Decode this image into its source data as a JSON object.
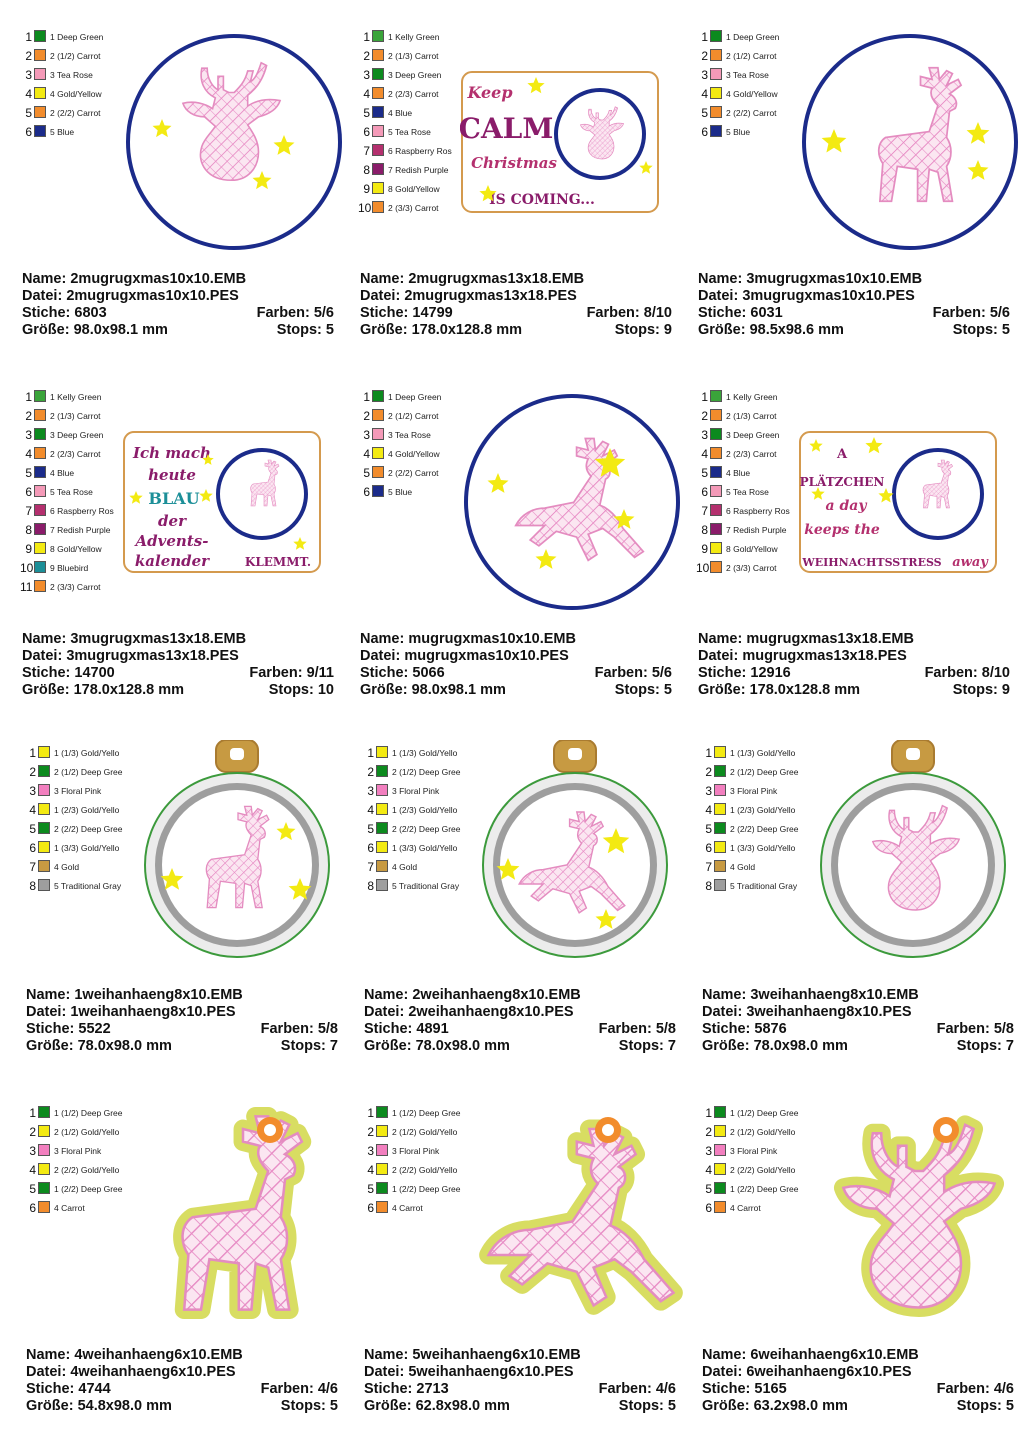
{
  "labels": {
    "name": "Name:",
    "file": "Datei:",
    "stitches": "Stiche:",
    "colors": "Farben:",
    "size": "Größe:",
    "stops": "Stops:"
  },
  "colors": {
    "deep_green": "#0c8a1e",
    "kelly_green": "#3aa43a",
    "carrot": "#f28c2c",
    "tea_rose": "#f49ab8",
    "gold_yellow": "#f3ea12",
    "blue": "#1b2b8a",
    "raspberry": "#b4306e",
    "redish_purple": "#8a1c6a",
    "bluebird": "#1c8f98",
    "floral_pink": "#f27fbf",
    "gold": "#c79a42",
    "gray": "#9e9e9e"
  },
  "cards": [
    {
      "name": "2mugrugxmas10x10.EMB",
      "file": "2mugrugxmas10x10.PES",
      "stitches": "6803",
      "colors": "5/6",
      "size": "98.0x98.1 mm",
      "stops": "5",
      "image": "reindeer-head-circle",
      "legend": [
        {
          "n": "1",
          "c": "#0c8a1e",
          "t": "1 Deep Green"
        },
        {
          "n": "2",
          "c": "#f28c2c",
          "t": "2 (1/2) Carrot"
        },
        {
          "n": "3",
          "c": "#f49ab8",
          "t": "3 Tea Rose"
        },
        {
          "n": "4",
          "c": "#f3ea12",
          "t": "4 Gold/Yellow"
        },
        {
          "n": "5",
          "c": "#f28c2c",
          "t": "2 (2/2) Carrot"
        },
        {
          "n": "6",
          "c": "#1b2b8a",
          "t": "5 Blue"
        }
      ]
    },
    {
      "name": "2mugrugxmas13x18.EMB",
      "file": "2mugrugxmas13x18.PES",
      "stitches": "14799",
      "colors": "8/10",
      "size": "178.0x128.8 mm",
      "stops": "9",
      "image": "keep-calm-rug",
      "text": {
        "l1": "Keep",
        "l2": "CALM",
        "l3": "Christmas",
        "l4": "IS COMING..."
      },
      "legend": [
        {
          "n": "1",
          "c": "#3aa43a",
          "t": "1 Kelly Green"
        },
        {
          "n": "2",
          "c": "#f28c2c",
          "t": "2 (1/3) Carrot"
        },
        {
          "n": "3",
          "c": "#0c8a1e",
          "t": "3 Deep Green"
        },
        {
          "n": "4",
          "c": "#f28c2c",
          "t": "2 (2/3) Carrot"
        },
        {
          "n": "5",
          "c": "#1b2b8a",
          "t": "4 Blue"
        },
        {
          "n": "6",
          "c": "#f49ab8",
          "t": "5 Tea Rose"
        },
        {
          "n": "7",
          "c": "#b4306e",
          "t": "6 Raspberry Ros"
        },
        {
          "n": "8",
          "c": "#8a1c6a",
          "t": "7 Redish Purple"
        },
        {
          "n": "9",
          "c": "#f3ea12",
          "t": "8 Gold/Yellow"
        },
        {
          "n": "10",
          "c": "#f28c2c",
          "t": "2 (3/3) Carrot"
        }
      ]
    },
    {
      "name": "3mugrugxmas10x10.EMB",
      "file": "3mugrugxmas10x10.PES",
      "stitches": "6031",
      "colors": "5/6",
      "size": "98.5x98.6 mm",
      "stops": "5",
      "image": "reindeer-standing-circle",
      "legend": [
        {
          "n": "1",
          "c": "#0c8a1e",
          "t": "1 Deep Green"
        },
        {
          "n": "2",
          "c": "#f28c2c",
          "t": "2 (1/2) Carrot"
        },
        {
          "n": "3",
          "c": "#f49ab8",
          "t": "3 Tea Rose"
        },
        {
          "n": "4",
          "c": "#f3ea12",
          "t": "4 Gold/Yellow"
        },
        {
          "n": "5",
          "c": "#f28c2c",
          "t": "2 (2/2) Carrot"
        },
        {
          "n": "6",
          "c": "#1b2b8a",
          "t": "5 Blue"
        }
      ]
    },
    {
      "name": "3mugrugxmas13x18.EMB",
      "file": "3mugrugxmas13x18.PES",
      "stitches": "14700",
      "colors": "9/11",
      "size": "178.0x128.8 mm",
      "stops": "10",
      "image": "blau-rug",
      "text": {
        "l1": "Ich mach",
        "l2": "heute",
        "l3": "BLAU",
        "l4": "der",
        "l5": "Advents-",
        "l6": "kalender",
        "l7": "KLEMMT."
      },
      "legend": [
        {
          "n": "1",
          "c": "#3aa43a",
          "t": "1 Kelly Green"
        },
        {
          "n": "2",
          "c": "#f28c2c",
          "t": "2 (1/3) Carrot"
        },
        {
          "n": "3",
          "c": "#0c8a1e",
          "t": "3 Deep Green"
        },
        {
          "n": "4",
          "c": "#f28c2c",
          "t": "2 (2/3) Carrot"
        },
        {
          "n": "5",
          "c": "#1b2b8a",
          "t": "4 Blue"
        },
        {
          "n": "6",
          "c": "#f49ab8",
          "t": "5 Tea Rose"
        },
        {
          "n": "7",
          "c": "#b4306e",
          "t": "6 Raspberry Ros"
        },
        {
          "n": "8",
          "c": "#8a1c6a",
          "t": "7 Redish Purple"
        },
        {
          "n": "9",
          "c": "#f3ea12",
          "t": "8 Gold/Yellow"
        },
        {
          "n": "10",
          "c": "#1c8f98",
          "t": "9 Bluebird"
        },
        {
          "n": "11",
          "c": "#f28c2c",
          "t": "2 (3/3) Carrot"
        }
      ]
    },
    {
      "name": "mugrugxmas10x10.EMB",
      "file": "mugrugxmas10x10.PES",
      "stitches": "5066",
      "colors": "5/6",
      "size": "98.0x98.1 mm",
      "stops": "5",
      "image": "reindeer-leaping-circle",
      "legend": [
        {
          "n": "1",
          "c": "#0c8a1e",
          "t": "1 Deep Green"
        },
        {
          "n": "2",
          "c": "#f28c2c",
          "t": "2 (1/2) Carrot"
        },
        {
          "n": "3",
          "c": "#f49ab8",
          "t": "3 Tea Rose"
        },
        {
          "n": "4",
          "c": "#f3ea12",
          "t": "4 Gold/Yellow"
        },
        {
          "n": "5",
          "c": "#f28c2c",
          "t": "2 (2/2) Carrot"
        },
        {
          "n": "6",
          "c": "#1b2b8a",
          "t": "5 Blue"
        }
      ]
    },
    {
      "name": "mugrugxmas13x18.EMB",
      "file": "mugrugxmas13x18.PES",
      "stitches": "12916",
      "colors": "8/10",
      "size": "178.0x128.8 mm",
      "stops": "9",
      "image": "plaetzchen-rug",
      "text": {
        "l1": "A",
        "l2": "PLÄTZCHEN",
        "l3": "a day",
        "l4": "keeps the",
        "l5": "WEIHNACHTSSTRESS",
        "l6": "away"
      },
      "legend": [
        {
          "n": "1",
          "c": "#3aa43a",
          "t": "1 Kelly Green"
        },
        {
          "n": "2",
          "c": "#f28c2c",
          "t": "2 (1/3) Carrot"
        },
        {
          "n": "3",
          "c": "#0c8a1e",
          "t": "3 Deep Green"
        },
        {
          "n": "4",
          "c": "#f28c2c",
          "t": "2 (2/3) Carrot"
        },
        {
          "n": "5",
          "c": "#1b2b8a",
          "t": "4 Blue"
        },
        {
          "n": "6",
          "c": "#f49ab8",
          "t": "5 Tea Rose"
        },
        {
          "n": "7",
          "c": "#b4306e",
          "t": "6 Raspberry Ros"
        },
        {
          "n": "8",
          "c": "#8a1c6a",
          "t": "7 Redish Purple"
        },
        {
          "n": "9",
          "c": "#f3ea12",
          "t": "8 Gold/Yellow"
        },
        {
          "n": "10",
          "c": "#f28c2c",
          "t": "2 (3/3) Carrot"
        }
      ]
    },
    {
      "name": "1weihanhaeng8x10.EMB",
      "file": "1weihanhaeng8x10.PES",
      "stitches": "5522",
      "colors": "5/8",
      "size": "78.0x98.0 mm",
      "stops": "7",
      "image": "ornament-reindeer-standing",
      "legend": [
        {
          "n": "1",
          "c": "#f3ea12",
          "t": "1 (1/3) Gold/Yello"
        },
        {
          "n": "2",
          "c": "#0c8a1e",
          "t": "2 (1/2) Deep Gree"
        },
        {
          "n": "3",
          "c": "#f27fbf",
          "t": "3 Floral Pink"
        },
        {
          "n": "4",
          "c": "#f3ea12",
          "t": "1 (2/3) Gold/Yello"
        },
        {
          "n": "5",
          "c": "#0c8a1e",
          "t": "2 (2/2) Deep Gree"
        },
        {
          "n": "6",
          "c": "#f3ea12",
          "t": "1 (3/3) Gold/Yello"
        },
        {
          "n": "7",
          "c": "#c79a42",
          "t": "4 Gold"
        },
        {
          "n": "8",
          "c": "#9e9e9e",
          "t": "5 Traditional Gray"
        }
      ]
    },
    {
      "name": "2weihanhaeng8x10.EMB",
      "file": "2weihanhaeng8x10.PES",
      "stitches": "4891",
      "colors": "5/8",
      "size": "78.0x98.0 mm",
      "stops": "7",
      "image": "ornament-reindeer-leaping",
      "legend": [
        {
          "n": "1",
          "c": "#f3ea12",
          "t": "1 (1/3) Gold/Yello"
        },
        {
          "n": "2",
          "c": "#0c8a1e",
          "t": "2 (1/2) Deep Gree"
        },
        {
          "n": "3",
          "c": "#f27fbf",
          "t": "3 Floral Pink"
        },
        {
          "n": "4",
          "c": "#f3ea12",
          "t": "1 (2/3) Gold/Yello"
        },
        {
          "n": "5",
          "c": "#0c8a1e",
          "t": "2 (2/2) Deep Gree"
        },
        {
          "n": "6",
          "c": "#f3ea12",
          "t": "1 (3/3) Gold/Yello"
        },
        {
          "n": "7",
          "c": "#c79a42",
          "t": "4 Gold"
        },
        {
          "n": "8",
          "c": "#9e9e9e",
          "t": "5 Traditional Gray"
        }
      ]
    },
    {
      "name": "3weihanhaeng8x10.EMB",
      "file": "3weihanhaeng8x10.PES",
      "stitches": "5876",
      "colors": "5/8",
      "size": "78.0x98.0 mm",
      "stops": "7",
      "image": "ornament-reindeer-head",
      "legend": [
        {
          "n": "1",
          "c": "#f3ea12",
          "t": "1 (1/3) Gold/Yello"
        },
        {
          "n": "2",
          "c": "#0c8a1e",
          "t": "2 (1/2) Deep Gree"
        },
        {
          "n": "3",
          "c": "#f27fbf",
          "t": "3 Floral Pink"
        },
        {
          "n": "4",
          "c": "#f3ea12",
          "t": "1 (2/3) Gold/Yello"
        },
        {
          "n": "5",
          "c": "#0c8a1e",
          "t": "2 (2/2) Deep Gree"
        },
        {
          "n": "6",
          "c": "#f3ea12",
          "t": "1 (3/3) Gold/Yello"
        },
        {
          "n": "7",
          "c": "#c79a42",
          "t": "4 Gold"
        },
        {
          "n": "8",
          "c": "#9e9e9e",
          "t": "5 Traditional Gray"
        }
      ]
    },
    {
      "name": "4weihanhaeng6x10.EMB",
      "file": "4weihanhaeng6x10.PES",
      "stitches": "4744",
      "colors": "4/6",
      "size": "54.8x98.0 mm",
      "stops": "5",
      "image": "tag-reindeer-standing",
      "legend": [
        {
          "n": "1",
          "c": "#0c8a1e",
          "t": "1 (1/2) Deep Gree"
        },
        {
          "n": "2",
          "c": "#f3ea12",
          "t": "2 (1/2) Gold/Yello"
        },
        {
          "n": "3",
          "c": "#f27fbf",
          "t": "3 Floral Pink"
        },
        {
          "n": "4",
          "c": "#f3ea12",
          "t": "2 (2/2) Gold/Yello"
        },
        {
          "n": "5",
          "c": "#0c8a1e",
          "t": "1 (2/2) Deep Gree"
        },
        {
          "n": "6",
          "c": "#f28c2c",
          "t": "4 Carrot"
        }
      ]
    },
    {
      "name": "5weihanhaeng6x10.EMB",
      "file": "5weihanhaeng6x10.PES",
      "stitches": "2713",
      "colors": "4/6",
      "size": "62.8x98.0 mm",
      "stops": "5",
      "image": "tag-reindeer-leaping",
      "legend": [
        {
          "n": "1",
          "c": "#0c8a1e",
          "t": "1 (1/2) Deep Gree"
        },
        {
          "n": "2",
          "c": "#f3ea12",
          "t": "2 (1/2) Gold/Yello"
        },
        {
          "n": "3",
          "c": "#f27fbf",
          "t": "3 Floral Pink"
        },
        {
          "n": "4",
          "c": "#f3ea12",
          "t": "2 (2/2) Gold/Yello"
        },
        {
          "n": "5",
          "c": "#0c8a1e",
          "t": "1 (2/2) Deep Gree"
        },
        {
          "n": "6",
          "c": "#f28c2c",
          "t": "4 Carrot"
        }
      ]
    },
    {
      "name": "6weihanhaeng6x10.EMB",
      "file": "6weihanhaeng6x10.PES",
      "stitches": "5165",
      "colors": "4/6",
      "size": "63.2x98.0 mm",
      "stops": "5",
      "image": "tag-reindeer-head",
      "legend": [
        {
          "n": "1",
          "c": "#0c8a1e",
          "t": "1 (1/2) Deep Gree"
        },
        {
          "n": "2",
          "c": "#f3ea12",
          "t": "2 (1/2) Gold/Yello"
        },
        {
          "n": "3",
          "c": "#f27fbf",
          "t": "3 Floral Pink"
        },
        {
          "n": "4",
          "c": "#f3ea12",
          "t": "2 (2/2) Gold/Yello"
        },
        {
          "n": "5",
          "c": "#0c8a1e",
          "t": "1 (2/2) Deep Gree"
        },
        {
          "n": "6",
          "c": "#f28c2c",
          "t": "4 Carrot"
        }
      ]
    }
  ]
}
